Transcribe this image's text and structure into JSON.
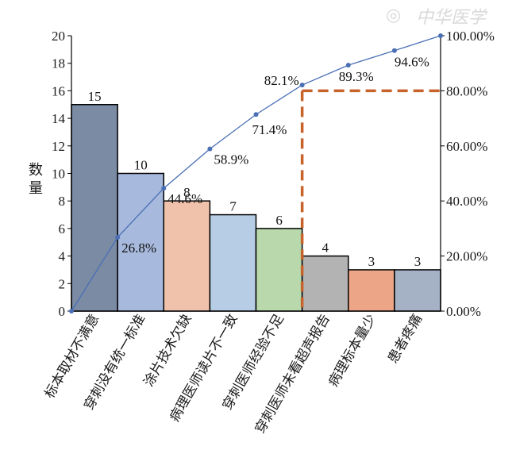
{
  "chart_data": {
    "type": "bar",
    "ylabel": "数量",
    "ylim": [
      0,
      20
    ],
    "ytick_step": 2,
    "y2lim": [
      0,
      100
    ],
    "y2_ticks": [
      "0.00%",
      "20.00%",
      "40.00%",
      "60.00%",
      "80.00%",
      "100.00%"
    ],
    "categories": [
      "标本取材不满意",
      "穿刺没有统一标准",
      "涂片技术欠缺",
      "病理医师读片不一致",
      "穿刺医师经验不足",
      "穿刺医师未看超声报告",
      "病理标本量少",
      "患者疼痛"
    ],
    "values": [
      15,
      10,
      8,
      7,
      6,
      4,
      3,
      3
    ],
    "bar_colors": [
      "#7a8ba3",
      "#a7b9dc",
      "#f1c2ab",
      "#b6cde5",
      "#b9d9ac",
      "#b3b3b3",
      "#eca586",
      "#a5b1c5"
    ],
    "cumulative_percent": [
      0,
      26.8,
      44.6,
      58.9,
      71.4,
      82.1,
      89.3,
      94.6,
      100
    ],
    "cumulative_labels": [
      "",
      "26.8%",
      "44.6%",
      "58.9%",
      "71.4%",
      "82.1%",
      "89.3%",
      "94.6%",
      ""
    ],
    "cutoff_percent": 80,
    "cutoff_after_category": 5,
    "line_color": "#4a6fb5",
    "cutoff_color": "#c8622b",
    "watermark": "中华医学"
  }
}
